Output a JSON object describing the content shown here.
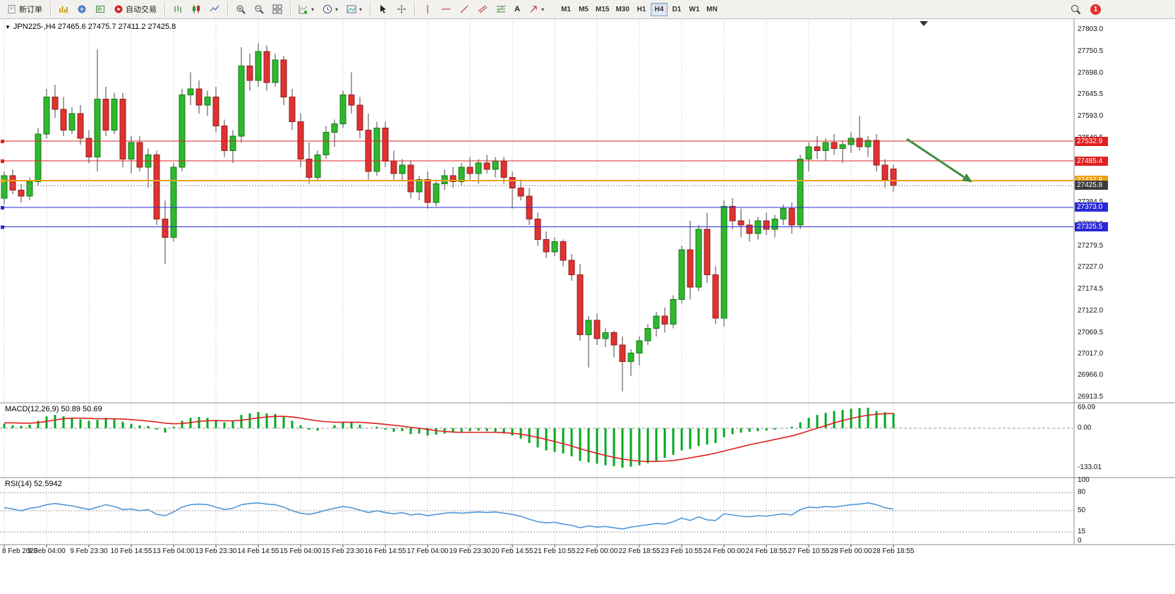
{
  "toolbar": {
    "new_order": "新订单",
    "autotrading": "自动交易",
    "timeframes": [
      "M1",
      "M5",
      "M15",
      "M30",
      "H1",
      "H4",
      "D1",
      "W1",
      "MN"
    ],
    "active_timeframe": "H4",
    "notification_count": "1"
  },
  "colors": {
    "up": "#2eb82e",
    "up_edge": "#157a15",
    "down": "#e03232",
    "down_edge": "#8f1f1f",
    "wick": "#444444",
    "grid": "#b4b4b4",
    "level_red": "#e02020",
    "level_blue": "#2828d8",
    "level_orange": "#f0a011",
    "current_price": "#3c3c3c",
    "macd_hist": "#00a81f",
    "macd_signal": "#e01f1f",
    "rsi_line": "#4f97d7",
    "arrow": "#3f8f3f"
  },
  "chart_data": {
    "type": "candlestick",
    "symbol": "JPN225-",
    "timeframe": "H4",
    "ohlc_header": "JPN225-,H4  27465.6 27475.7 27411.2 27425.8",
    "price_axis_labels": [
      "27803.0",
      "27750.5",
      "27698.0",
      "27645.5",
      "27593.0",
      "27540.5",
      "27488.0",
      "27437.0",
      "27384.5",
      "27332.0",
      "27279.5",
      "27227.0",
      "27174.5",
      "27122.0",
      "27069.5",
      "27017.0",
      "26966.0",
      "26913.5"
    ],
    "time_axis_labels": [
      "8 Feb 2023",
      "9 Feb 04:00",
      "9 Feb 23:30",
      "10 Feb 14:55",
      "13 Feb 04:00",
      "13 Feb 23:30",
      "14 Feb 14:55",
      "15 Feb 04:00",
      "15 Feb 23:30",
      "16 Feb 14:55",
      "17 Feb 04:00",
      "19 Feb 23:30",
      "20 Feb 14:55",
      "21 Feb 10:55",
      "22 Feb 00:00",
      "22 Feb 18:55",
      "23 Feb 10:55",
      "24 Feb 00:00",
      "24 Feb 18:55",
      "27 Feb 10:55",
      "28 Feb 00:00",
      "28 Feb 18:55"
    ],
    "levels": [
      {
        "label": "27532.9",
        "price": 27532.9,
        "kind": "resistance",
        "color": "#e02020",
        "width": 1
      },
      {
        "label": "27485.4",
        "price": 27485.4,
        "kind": "resistance",
        "color": "#e02020",
        "width": 1
      },
      {
        "label": "27437.8",
        "price": 27437.8,
        "kind": "pivot",
        "color": "#f0a011",
        "width": 2
      },
      {
        "label": "27373.0",
        "price": 27373.0,
        "kind": "support",
        "color": "#2828d8",
        "width": 1
      },
      {
        "label": "27325.5",
        "price": 27325.5,
        "kind": "support",
        "color": "#2828d8",
        "width": 1
      },
      {
        "label": "27425.8",
        "price": 27425.8,
        "kind": "current",
        "color": "#3c3c3c",
        "width": 1
      }
    ],
    "candles": [
      [
        27395,
        27460,
        27380,
        27450
      ],
      [
        27450,
        27465,
        27405,
        27415
      ],
      [
        27415,
        27430,
        27385,
        27400
      ],
      [
        27400,
        27445,
        27390,
        27435
      ],
      [
        27435,
        27565,
        27425,
        27550
      ],
      [
        27550,
        27660,
        27540,
        27640
      ],
      [
        27640,
        27670,
        27590,
        27610
      ],
      [
        27610,
        27640,
        27545,
        27560
      ],
      [
        27560,
        27615,
        27550,
        27600
      ],
      [
        27600,
        27620,
        27525,
        27540
      ],
      [
        27540,
        27560,
        27480,
        27495
      ],
      [
        27495,
        27755,
        27460,
        27635
      ],
      [
        27635,
        27665,
        27545,
        27560
      ],
      [
        27560,
        27650,
        27550,
        27635
      ],
      [
        27635,
        27650,
        27470,
        27490
      ],
      [
        27490,
        27545,
        27455,
        27530
      ],
      [
        27530,
        27545,
        27460,
        27470
      ],
      [
        27470,
        27515,
        27420,
        27500
      ],
      [
        27500,
        27510,
        27330,
        27345
      ],
      [
        27345,
        27390,
        27235,
        27300
      ],
      [
        27300,
        27480,
        27290,
        27470
      ],
      [
        27470,
        27660,
        27460,
        27645
      ],
      [
        27645,
        27700,
        27620,
        27660
      ],
      [
        27660,
        27680,
        27600,
        27620
      ],
      [
        27620,
        27655,
        27595,
        27640
      ],
      [
        27640,
        27665,
        27555,
        27570
      ],
      [
        27570,
        27585,
        27495,
        27510
      ],
      [
        27510,
        27560,
        27480,
        27545
      ],
      [
        27545,
        27760,
        27530,
        27715
      ],
      [
        27715,
        27745,
        27655,
        27680
      ],
      [
        27680,
        27770,
        27665,
        27750
      ],
      [
        27750,
        27765,
        27655,
        27675
      ],
      [
        27675,
        27745,
        27665,
        27730
      ],
      [
        27730,
        27740,
        27620,
        27640
      ],
      [
        27640,
        27660,
        27560,
        27580
      ],
      [
        27580,
        27600,
        27470,
        27490
      ],
      [
        27490,
        27530,
        27430,
        27445
      ],
      [
        27445,
        27510,
        27435,
        27500
      ],
      [
        27500,
        27570,
        27490,
        27555
      ],
      [
        27555,
        27585,
        27520,
        27575
      ],
      [
        27575,
        27655,
        27565,
        27645
      ],
      [
        27645,
        27700,
        27600,
        27620
      ],
      [
        27620,
        27640,
        27540,
        27560
      ],
      [
        27560,
        27600,
        27440,
        27460
      ],
      [
        27460,
        27580,
        27450,
        27565
      ],
      [
        27565,
        27580,
        27470,
        27485
      ],
      [
        27485,
        27510,
        27440,
        27455
      ],
      [
        27455,
        27490,
        27435,
        27475
      ],
      [
        27475,
        27485,
        27395,
        27410
      ],
      [
        27410,
        27450,
        27390,
        27440
      ],
      [
        27440,
        27460,
        27370,
        27385
      ],
      [
        27385,
        27440,
        27375,
        27430
      ],
      [
        27430,
        27465,
        27415,
        27450
      ],
      [
        27450,
        27470,
        27420,
        27435
      ],
      [
        27435,
        27480,
        27425,
        27470
      ],
      [
        27470,
        27495,
        27440,
        27455
      ],
      [
        27455,
        27490,
        27430,
        27480
      ],
      [
        27480,
        27500,
        27455,
        27465
      ],
      [
        27465,
        27495,
        27445,
        27485
      ],
      [
        27485,
        27495,
        27430,
        27445
      ],
      [
        27445,
        27460,
        27370,
        27420
      ],
      [
        27420,
        27440,
        27390,
        27400
      ],
      [
        27400,
        27420,
        27330,
        27345
      ],
      [
        27345,
        27360,
        27280,
        27295
      ],
      [
        27295,
        27315,
        27250,
        27265
      ],
      [
        27265,
        27300,
        27255,
        27290
      ],
      [
        27290,
        27295,
        27230,
        27245
      ],
      [
        27245,
        27260,
        27195,
        27210
      ],
      [
        27210,
        27235,
        27050,
        27065
      ],
      [
        27065,
        27110,
        26985,
        27100
      ],
      [
        27100,
        27115,
        27040,
        27055
      ],
      [
        27055,
        27080,
        27035,
        27070
      ],
      [
        27070,
        27075,
        27010,
        27040
      ],
      [
        27040,
        27060,
        26927,
        27000
      ],
      [
        27000,
        27030,
        26965,
        27020
      ],
      [
        27020,
        27060,
        26990,
        27050
      ],
      [
        27050,
        27090,
        27040,
        27080
      ],
      [
        27080,
        27120,
        27060,
        27110
      ],
      [
        27110,
        27130,
        27070,
        27090
      ],
      [
        27090,
        27160,
        27080,
        27150
      ],
      [
        27150,
        27280,
        27140,
        27270
      ],
      [
        27270,
        27340,
        27150,
        27180
      ],
      [
        27180,
        27330,
        27170,
        27320
      ],
      [
        27320,
        27360,
        27190,
        27210
      ],
      [
        27210,
        27230,
        27090,
        27105
      ],
      [
        27105,
        27390,
        27085,
        27375
      ],
      [
        27375,
        27395,
        27320,
        27340
      ],
      [
        27340,
        27370,
        27300,
        27330
      ],
      [
        27330,
        27345,
        27290,
        27310
      ],
      [
        27310,
        27350,
        27295,
        27340
      ],
      [
        27340,
        27360,
        27305,
        27320
      ],
      [
        27320,
        27355,
        27300,
        27345
      ],
      [
        27345,
        27380,
        27330,
        27370
      ],
      [
        27370,
        27385,
        27310,
        27330
      ],
      [
        27330,
        27500,
        27320,
        27490
      ],
      [
        27490,
        27530,
        27460,
        27520
      ],
      [
        27520,
        27545,
        27490,
        27510
      ],
      [
        27510,
        27540,
        27485,
        27530
      ],
      [
        27530,
        27550,
        27500,
        27515
      ],
      [
        27515,
        27535,
        27480,
        27525
      ],
      [
        27525,
        27555,
        27505,
        27540
      ],
      [
        27540,
        27595,
        27510,
        27520
      ],
      [
        27520,
        27545,
        27495,
        27535
      ],
      [
        27535,
        27550,
        27460,
        27475
      ],
      [
        27475,
        27490,
        27420,
        27440
      ],
      [
        27465.6,
        27475.7,
        27411.2,
        27425.8
      ]
    ],
    "macd": {
      "label": "MACD(12,26,9) 50.89 50.69",
      "axis_labels": [
        "69.09",
        "0.00",
        "-133.01"
      ],
      "histogram": [
        15,
        10,
        8,
        12,
        25,
        40,
        45,
        40,
        35,
        30,
        25,
        28,
        35,
        30,
        22,
        15,
        10,
        8,
        -5,
        -15,
        5,
        25,
        35,
        38,
        35,
        28,
        20,
        25,
        45,
        50,
        55,
        50,
        48,
        40,
        25,
        10,
        -5,
        -8,
        0,
        10,
        20,
        22,
        12,
        0,
        5,
        -5,
        -12,
        -10,
        -20,
        -18,
        -25,
        -22,
        -18,
        -15,
        -12,
        -10,
        -8,
        -10,
        -12,
        -18,
        -25,
        -35,
        -50,
        -65,
        -75,
        -80,
        -85,
        -95,
        -110,
        -115,
        -120,
        -125,
        -128,
        -133,
        -130,
        -125,
        -118,
        -110,
        -100,
        -90,
        -75,
        -70,
        -60,
        -55,
        -50,
        -30,
        -20,
        -15,
        -12,
        -10,
        -8,
        -5,
        0,
        5,
        20,
        35,
        45,
        52,
        58,
        62,
        66,
        68,
        69,
        58,
        54,
        51
      ],
      "signal": [
        18,
        18,
        17,
        17,
        19,
        23,
        28,
        32,
        34,
        34,
        33,
        32,
        32,
        32,
        31,
        29,
        27,
        24,
        21,
        17,
        15,
        16,
        19,
        23,
        25,
        26,
        25,
        25,
        27,
        31,
        35,
        38,
        40,
        40,
        38,
        34,
        29,
        25,
        22,
        20,
        20,
        20,
        20,
        18,
        16,
        13,
        10,
        7,
        3,
        0,
        -4,
        -8,
        -11,
        -13,
        -14,
        -14,
        -14,
        -14,
        -14,
        -15,
        -17,
        -20,
        -25,
        -31,
        -38,
        -45,
        -52,
        -60,
        -69,
        -77,
        -85,
        -92,
        -98,
        -104,
        -108,
        -111,
        -112,
        -112,
        -111,
        -109,
        -105,
        -100,
        -95,
        -90,
        -84,
        -77,
        -70,
        -63,
        -56,
        -50,
        -44,
        -38,
        -32,
        -26,
        -18,
        -9,
        0,
        9,
        18,
        26,
        33,
        39,
        44,
        47,
        49,
        50
      ]
    },
    "rsi": {
      "label": "RSI(14) 52.5942",
      "axis_labels": [
        "100",
        "80",
        "50",
        "15",
        "0"
      ],
      "level_lines": [
        80,
        50,
        15
      ],
      "values": [
        55,
        53,
        50,
        54,
        56,
        60,
        62,
        60,
        58,
        55,
        52,
        56,
        60,
        57,
        52,
        53,
        50,
        52,
        44,
        42,
        48,
        56,
        60,
        61,
        60,
        56,
        52,
        54,
        60,
        62,
        63,
        61,
        60,
        56,
        50,
        46,
        44,
        47,
        51,
        54,
        57,
        55,
        51,
        47,
        50,
        47,
        45,
        47,
        43,
        45,
        42,
        44,
        46,
        47,
        46,
        47,
        48,
        47,
        48,
        46,
        44,
        41,
        36,
        32,
        30,
        31,
        28,
        26,
        22,
        25,
        23,
        24,
        22,
        20,
        23,
        25,
        27,
        29,
        28,
        32,
        38,
        34,
        40,
        35,
        34,
        45,
        43,
        41,
        40,
        42,
        41,
        43,
        45,
        43,
        52,
        56,
        55,
        57,
        56,
        58,
        60,
        61,
        63,
        60,
        55,
        52.6
      ]
    }
  }
}
